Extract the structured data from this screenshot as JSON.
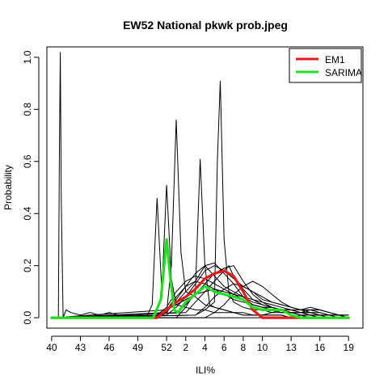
{
  "chart_data": {
    "type": "line",
    "title": "EW52 National pkwk prob.jpeg",
    "xlabel": "ILI%",
    "ylabel": "Probability",
    "x_tick_labels": [
      "40",
      "43",
      "46",
      "49",
      "52",
      "2",
      "4",
      "6",
      "8",
      "10",
      "13",
      "16",
      "19"
    ],
    "x_tick_positions": [
      0,
      3,
      6,
      9,
      12,
      14,
      16,
      18,
      20,
      22,
      25,
      28,
      31
    ],
    "x_domain": [
      -0.5,
      32.5
    ],
    "y_ticks": [
      0.0,
      0.2,
      0.4,
      0.6,
      0.8,
      1.0
    ],
    "y_tick_labels": [
      "0.0",
      "0.2",
      "0.4",
      "0.6",
      "0.8",
      "1.0"
    ],
    "ylim": [
      -0.04,
      1.04
    ],
    "grid": false,
    "legend_position": "top-right",
    "series": [
      {
        "name": "EM1",
        "color": "#e41a1c",
        "x": [
          0,
          9,
          11,
          12,
          13,
          14,
          15,
          16,
          17,
          18,
          19,
          20,
          21,
          22,
          23,
          25,
          27,
          31
        ],
        "y": [
          0,
          0,
          0,
          0.03,
          0.06,
          0.08,
          0.11,
          0.15,
          0.17,
          0.18,
          0.16,
          0.1,
          0.03,
          0,
          0,
          0,
          0,
          0
        ]
      },
      {
        "name": "SARIMA",
        "color": "#1fe01f",
        "x": [
          0,
          10,
          10.6,
          11.4,
          12,
          12.4,
          12.8,
          13.2,
          14,
          15,
          16,
          17,
          18,
          19,
          20,
          21,
          22,
          23,
          24,
          25,
          26,
          27,
          31
        ],
        "y": [
          0,
          0,
          0,
          0.07,
          0.3,
          0.15,
          0.03,
          0.02,
          0.06,
          0.09,
          0.12,
          0.1,
          0.09,
          0.08,
          0.07,
          0.04,
          0.03,
          0.03,
          0.03,
          0.01,
          0,
          0,
          0
        ]
      }
    ],
    "background_lines": [
      {
        "x": [
          0,
          0.7,
          0.8,
          0.9,
          1,
          1.2,
          1.5,
          2,
          3,
          4,
          5,
          6,
          7,
          8,
          9,
          10,
          31
        ],
        "y": [
          0,
          0,
          0.6,
          1.02,
          0.45,
          0,
          0.03,
          0.02,
          0.01,
          0.02,
          0.01,
          0.02,
          0.01,
          0.01,
          0,
          0,
          0
        ]
      },
      {
        "x": [
          0,
          10,
          10.5,
          11,
          11.5,
          12,
          12.5,
          13,
          14,
          15,
          16,
          17,
          18,
          19,
          20,
          21,
          22,
          23,
          24,
          25,
          26,
          27,
          28,
          29,
          30,
          31
        ],
        "y": [
          0,
          0.01,
          0.05,
          0.46,
          0.1,
          0.51,
          0.15,
          0.05,
          0.04,
          0.03,
          0.03,
          0.02,
          0.02,
          0.02,
          0.01,
          0.01,
          0.01,
          0.01,
          0.01,
          0,
          0.01,
          0,
          0,
          0,
          0,
          0
        ]
      },
      {
        "x": [
          0,
          11,
          12,
          12.5,
          13,
          13.5,
          14,
          15,
          16,
          17,
          18,
          19,
          20,
          21,
          22,
          23,
          24,
          25,
          26,
          27,
          28,
          31
        ],
        "y": [
          0,
          0,
          0.02,
          0.2,
          0.76,
          0.25,
          0.1,
          0.08,
          0.05,
          0.04,
          0.03,
          0.02,
          0.01,
          0.01,
          0.01,
          0.02,
          0.03,
          0.02,
          0.01,
          0,
          0,
          0
        ]
      },
      {
        "x": [
          0,
          13,
          14,
          15,
          15.5,
          16,
          16.5,
          17,
          18,
          19,
          20,
          21,
          22,
          23,
          24,
          25,
          31
        ],
        "y": [
          0,
          0,
          0.04,
          0.1,
          0.61,
          0.2,
          0.05,
          0.04,
          0.03,
          0.02,
          0.02,
          0.01,
          0.01,
          0.01,
          0.01,
          0,
          0
        ]
      },
      {
        "x": [
          0,
          15,
          16,
          17,
          17.3,
          17.6,
          18,
          18.5,
          19,
          20,
          21,
          22,
          23,
          24,
          25,
          26,
          27,
          28,
          29,
          30,
          31
        ],
        "y": [
          0,
          0.01,
          0.03,
          0.06,
          0.6,
          0.91,
          0.3,
          0.1,
          0.06,
          0.04,
          0.03,
          0.03,
          0.02,
          0.02,
          0.02,
          0.02,
          0.01,
          0.01,
          0.01,
          0.01,
          0.01
        ]
      },
      {
        "x": [
          0,
          11,
          12,
          13,
          14,
          15,
          16,
          17,
          18,
          19,
          20,
          21,
          22,
          23,
          24,
          25,
          26,
          27,
          28,
          31
        ],
        "y": [
          0,
          0,
          0.03,
          0.06,
          0.1,
          0.14,
          0.2,
          0.21,
          0.17,
          0.13,
          0.08,
          0.06,
          0.05,
          0.04,
          0.03,
          0.02,
          0.01,
          0.01,
          0,
          0
        ]
      },
      {
        "x": [
          0,
          12,
          13,
          14,
          15,
          16,
          17,
          18,
          19,
          20,
          21,
          22,
          23,
          24,
          25,
          26,
          27,
          28,
          29,
          30,
          31
        ],
        "y": [
          0,
          0.01,
          0.04,
          0.08,
          0.13,
          0.18,
          0.2,
          0.18,
          0.15,
          0.12,
          0.1,
          0.07,
          0.06,
          0.05,
          0.04,
          0.03,
          0.04,
          0.03,
          0.02,
          0.01,
          0.01
        ]
      },
      {
        "x": [
          0,
          13,
          14,
          15,
          16,
          17,
          18,
          19,
          20,
          21,
          22,
          23,
          24,
          25,
          26,
          27,
          28,
          29,
          30,
          31
        ],
        "y": [
          0,
          0.02,
          0.05,
          0.09,
          0.13,
          0.17,
          0.19,
          0.2,
          0.14,
          0.09,
          0.06,
          0.04,
          0.03,
          0.03,
          0.02,
          0.01,
          0.01,
          0,
          0,
          0
        ]
      },
      {
        "x": [
          0,
          12,
          13,
          14,
          15,
          16,
          17,
          18,
          19,
          20,
          21,
          22,
          23,
          24,
          25,
          26,
          27,
          28,
          29,
          30,
          31
        ],
        "y": [
          0,
          0.02,
          0.07,
          0.12,
          0.17,
          0.2,
          0.16,
          0.12,
          0.1,
          0.08,
          0.05,
          0.04,
          0.03,
          0.02,
          0.02,
          0.02,
          0.03,
          0.03,
          0.02,
          0.01,
          0
        ]
      },
      {
        "x": [
          0,
          11,
          12,
          13,
          14,
          15,
          16,
          17,
          18,
          19,
          20,
          21,
          22,
          23,
          24,
          25,
          26,
          27,
          28,
          29,
          30,
          31
        ],
        "y": [
          0,
          0.01,
          0.04,
          0.1,
          0.14,
          0.16,
          0.15,
          0.13,
          0.11,
          0.09,
          0.07,
          0.05,
          0.04,
          0.04,
          0.03,
          0.03,
          0.02,
          0.02,
          0.01,
          0.01,
          0.01,
          0
        ]
      },
      {
        "x": [
          0,
          14,
          15,
          16,
          17,
          18,
          18.5,
          19,
          20,
          21,
          22,
          23,
          24,
          25,
          26,
          27,
          28,
          31
        ],
        "y": [
          0,
          0.02,
          0.06,
          0.1,
          0.14,
          0.18,
          0.2,
          0.16,
          0.11,
          0.07,
          0.05,
          0.04,
          0.03,
          0.02,
          0.01,
          0.01,
          0,
          0
        ]
      },
      {
        "x": [
          0,
          15,
          16,
          17,
          18,
          19,
          20,
          21,
          22,
          23,
          24,
          25,
          26,
          27,
          28,
          29,
          30,
          31
        ],
        "y": [
          0,
          0.01,
          0.04,
          0.08,
          0.11,
          0.13,
          0.12,
          0.1,
          0.08,
          0.06,
          0.05,
          0.04,
          0.03,
          0.03,
          0.02,
          0.01,
          0.01,
          0
        ]
      },
      {
        "x": [
          0,
          11,
          12,
          13,
          14,
          15,
          16,
          17,
          18,
          19,
          20,
          21,
          22,
          23,
          24,
          25,
          26,
          27,
          28,
          29,
          30,
          31
        ],
        "y": [
          0,
          0.01,
          0.03,
          0.05,
          0.07,
          0.09,
          0.1,
          0.11,
          0.1,
          0.09,
          0.08,
          0.07,
          0.06,
          0.05,
          0.04,
          0.03,
          0.02,
          0.02,
          0.01,
          0.01,
          0,
          0
        ]
      },
      {
        "x": [
          0,
          16,
          17,
          18,
          19,
          20,
          21,
          22,
          23,
          24,
          25,
          26,
          27,
          28,
          29,
          30,
          31
        ],
        "y": [
          0,
          0,
          0.02,
          0.05,
          0.09,
          0.12,
          0.14,
          0.12,
          0.09,
          0.06,
          0.04,
          0.03,
          0.02,
          0.02,
          0.01,
          0.01,
          0
        ]
      },
      {
        "x": [
          0,
          12,
          13,
          14,
          15,
          16,
          17,
          18,
          19,
          20,
          21,
          22,
          23,
          24,
          25,
          26,
          27,
          28,
          29,
          30,
          31
        ],
        "y": [
          0,
          0.03,
          0.08,
          0.12,
          0.14,
          0.13,
          0.11,
          0.09,
          0.07,
          0.06,
          0.05,
          0.04,
          0.04,
          0.03,
          0.03,
          0.03,
          0.03,
          0.03,
          0.02,
          0.01,
          0.01
        ]
      }
    ]
  }
}
